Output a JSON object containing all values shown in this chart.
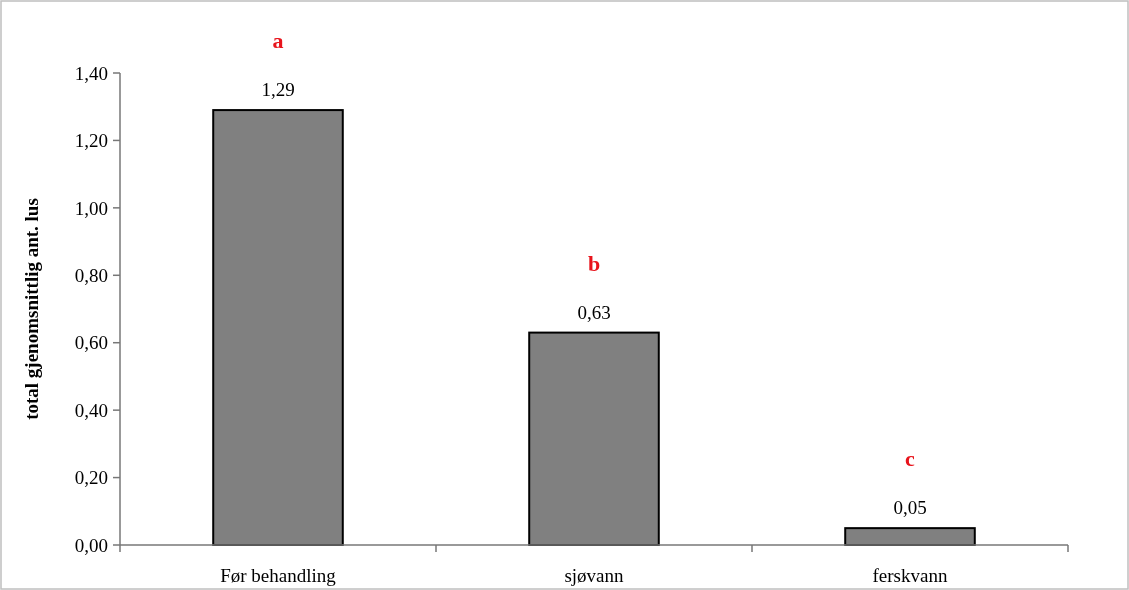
{
  "chart_data": {
    "type": "bar",
    "ylabel": "total gjenomsnittlig ant. lus",
    "categories": [
      "Før behandling",
      "sjøvann",
      "ferskvann"
    ],
    "values": [
      1.29,
      0.63,
      0.05
    ],
    "color": "#808080",
    "value_labels": [
      "1,29",
      "0,63",
      "0,05"
    ],
    "ylim": [
      0,
      1.4
    ],
    "yticks": [
      {
        "value": 0,
        "label": "0,00"
      },
      {
        "value": 0.2,
        "label": "0,20"
      },
      {
        "value": 0.4,
        "label": "0,40"
      },
      {
        "value": 0.6,
        "label": "0,60"
      },
      {
        "value": 0.8,
        "label": "0,80"
      },
      {
        "value": 1.0,
        "label": "1,00"
      },
      {
        "value": 1.2,
        "label": "1,20"
      },
      {
        "value": 1.4,
        "label": "1,40"
      }
    ],
    "annotations": [
      "a",
      "b",
      "c"
    ],
    "grid": false
  }
}
